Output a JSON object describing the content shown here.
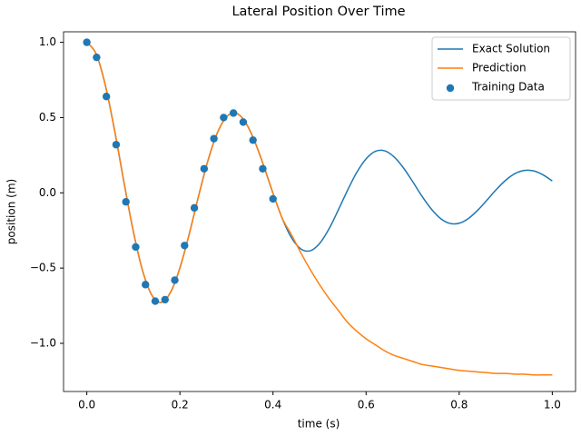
{
  "chart_data": {
    "type": "line",
    "title": "Lateral Position Over Time",
    "x_label": "time (s)",
    "y_label": "position (m)",
    "x": [
      0,
      0.02,
      0.04,
      0.06,
      0.08,
      0.1,
      0.12,
      0.14,
      0.16,
      0.18,
      0.2,
      0.22,
      0.24,
      0.26,
      0.28,
      0.3,
      0.32,
      0.34,
      0.36,
      0.38,
      0.4,
      0.42,
      0.44,
      0.46,
      0.48,
      0.5,
      0.52,
      0.54,
      0.56,
      0.58,
      0.6,
      0.62,
      0.64,
      0.66,
      0.68,
      0.7,
      0.72,
      0.74,
      0.76,
      0.78,
      0.8,
      0.82,
      0.84,
      0.86,
      0.88,
      0.9,
      0.92,
      0.94,
      0.96,
      0.98,
      1.0
    ],
    "series": [
      {
        "name": "Exact Solution",
        "color": "#1f77b4",
        "type": "line",
        "values": [
          1.0,
          0.923,
          0.712,
          0.409,
          0.067,
          -0.258,
          -0.519,
          -0.682,
          -0.728,
          -0.66,
          -0.499,
          -0.274,
          -0.023,
          0.212,
          0.395,
          0.504,
          0.53,
          0.473,
          0.347,
          0.18,
          -0.003,
          -0.171,
          -0.3,
          -0.373,
          -0.385,
          -0.337,
          -0.241,
          -0.116,
          0.016,
          0.136,
          0.226,
          0.276,
          0.279,
          0.239,
          0.167,
          0.075,
          -0.022,
          -0.107,
          -0.171,
          -0.203,
          -0.202,
          -0.17,
          -0.115,
          -0.047,
          0.023,
          0.084,
          0.128,
          0.149,
          0.146,
          0.12,
          0.079
        ]
      },
      {
        "name": "Prediction",
        "color": "#ff7f0e",
        "type": "line",
        "values": [
          1.0,
          0.923,
          0.712,
          0.409,
          0.067,
          -0.258,
          -0.519,
          -0.682,
          -0.728,
          -0.66,
          -0.499,
          -0.274,
          -0.023,
          0.212,
          0.395,
          0.504,
          0.53,
          0.473,
          0.347,
          0.18,
          -0.003,
          -0.17,
          -0.28,
          -0.4,
          -0.51,
          -0.61,
          -0.7,
          -0.78,
          -0.86,
          -0.92,
          -0.97,
          -1.01,
          -1.05,
          -1.08,
          -1.1,
          -1.12,
          -1.14,
          -1.15,
          -1.16,
          -1.17,
          -1.18,
          -1.185,
          -1.19,
          -1.195,
          -1.2,
          -1.2,
          -1.205,
          -1.205,
          -1.21,
          -1.21,
          -1.21
        ]
      },
      {
        "name": "Training Data",
        "color": "#1f77b4",
        "type": "scatter",
        "x": [
          0,
          0.021,
          0.042,
          0.063,
          0.084,
          0.105,
          0.126,
          0.147,
          0.168,
          0.189,
          0.21,
          0.231,
          0.252,
          0.273,
          0.294,
          0.315,
          0.336,
          0.357,
          0.378,
          0.4
        ],
        "values": [
          1.0,
          0.9,
          0.64,
          0.32,
          -0.06,
          -0.36,
          -0.61,
          -0.72,
          -0.71,
          -0.58,
          -0.35,
          -0.1,
          0.16,
          0.36,
          0.5,
          0.53,
          0.47,
          0.35,
          0.16,
          -0.04
        ]
      }
    ],
    "xlim": [
      -0.05,
      1.05
    ],
    "ylim": [
      -1.32,
      1.07
    ],
    "xticks": [
      {
        "value": 0,
        "label": "0.0"
      },
      {
        "value": 0.2,
        "label": "0.2"
      },
      {
        "value": 0.4,
        "label": "0.4"
      },
      {
        "value": 0.6,
        "label": "0.6"
      },
      {
        "value": 0.8,
        "label": "0.8"
      },
      {
        "value": 1,
        "label": "1.0"
      }
    ],
    "yticks": [
      {
        "value": -1,
        "label": "−1.0"
      },
      {
        "value": -0.5,
        "label": "−0.5"
      },
      {
        "value": 0,
        "label": "0.0"
      },
      {
        "value": 0.5,
        "label": "0.5"
      },
      {
        "value": 1,
        "label": "1.0"
      }
    ],
    "grid": false,
    "legend": "upper right"
  }
}
